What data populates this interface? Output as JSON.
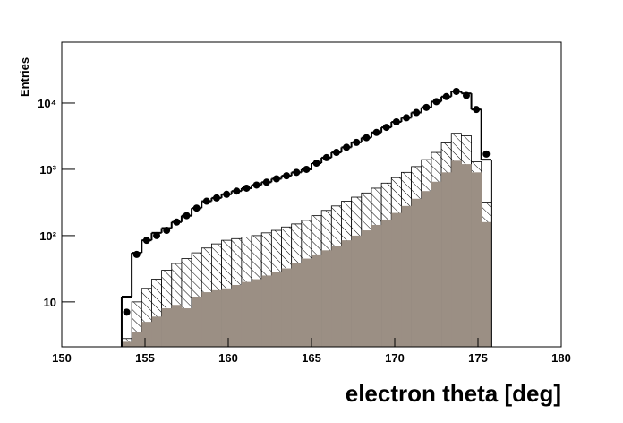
{
  "chart_data": {
    "type": "histogram",
    "x_label": "electron theta [deg]",
    "y_label": "Entries",
    "xlim": [
      150,
      180
    ],
    "xticks": [
      150,
      155,
      160,
      165,
      170,
      175,
      180
    ],
    "ylim": [
      2.1,
      83000
    ],
    "ylog": true,
    "yticks": [
      10,
      {
        "value": 100,
        "label": "10²"
      },
      {
        "value": 1000,
        "label": "10³"
      },
      {
        "value": 10000,
        "label": "10⁴"
      }
    ],
    "bins": [
      153.6,
      154.2,
      154.8,
      155.4,
      156.0,
      156.6,
      157.2,
      157.8,
      158.4,
      159.0,
      159.6,
      160.2,
      160.8,
      161.4,
      162.0,
      162.6,
      163.2,
      163.8,
      164.4,
      165.0,
      165.6,
      166.2,
      166.8,
      167.4,
      168.0,
      168.6,
      169.2,
      169.8,
      170.4,
      171.0,
      171.6,
      172.2,
      172.8,
      173.4,
      174.0,
      174.6,
      175.2,
      175.8
    ],
    "series": [
      {
        "style": "hatch",
        "color": "#000000",
        "values": [
          2.8,
          10,
          16,
          22,
          30,
          38,
          45,
          55,
          65,
          75,
          85,
          90,
          95,
          100,
          110,
          120,
          135,
          150,
          170,
          200,
          240,
          280,
          330,
          380,
          440,
          520,
          620,
          750,
          900,
          1100,
          1400,
          1800,
          2500,
          3500,
          3200,
          1300,
          320
        ]
      },
      {
        "style": "fill",
        "color": "#9b8f84",
        "values": [
          2.5,
          3.5,
          5,
          6,
          8,
          9,
          8,
          12,
          14,
          15,
          16,
          18,
          20,
          22,
          25,
          28,
          32,
          38,
          45,
          52,
          60,
          70,
          85,
          100,
          120,
          145,
          175,
          220,
          280,
          360,
          470,
          650,
          900,
          1350,
          1200,
          900,
          160
        ]
      },
      {
        "style": "step",
        "color": "#000000",
        "values": [
          12,
          55,
          85,
          110,
          130,
          160,
          200,
          260,
          330,
          370,
          420,
          470,
          520,
          580,
          640,
          720,
          800,
          900,
          1000,
          1240,
          1500,
          1800,
          2150,
          2550,
          3000,
          3600,
          4300,
          5200,
          6000,
          7200,
          8600,
          10500,
          12500,
          15000,
          14000,
          8000,
          1400
        ]
      },
      {
        "style": "points",
        "color": "#000000",
        "values": [
          7,
          52,
          85,
          100,
          120,
          160,
          200,
          260,
          330,
          370,
          420,
          470,
          520,
          580,
          640,
          720,
          800,
          900,
          1000,
          1240,
          1500,
          1800,
          2150,
          2550,
          3000,
          3600,
          4300,
          5200,
          6000,
          7200,
          8600,
          10500,
          12500,
          15000,
          13000,
          8000,
          1700
        ]
      }
    ]
  }
}
